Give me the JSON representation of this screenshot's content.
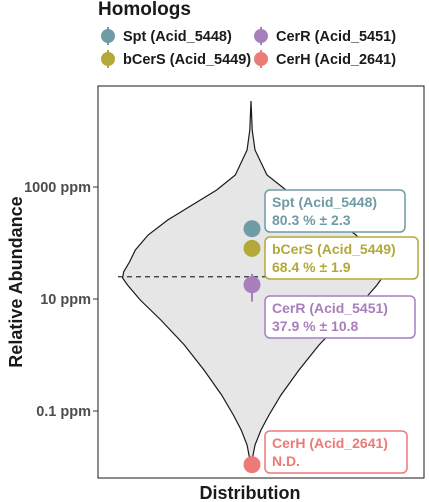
{
  "chart_data": {
    "type": "violin",
    "legend_title": "Homologs",
    "legend_placement": "top",
    "xlabel": "Distribution",
    "ylabel": "Relative Abundance",
    "y_scale": "log",
    "ylim_ppm": [
      0.01,
      30000
    ],
    "yticks": [
      {
        "value": 1000,
        "label": "1000 ppm"
      },
      {
        "value": 10,
        "label": "10 ppm"
      },
      {
        "value": 0.1,
        "label": "0.1 ppm"
      }
    ],
    "median_line_ppm": 25,
    "series": [
      {
        "name": "Spt (Acid_5448)",
        "value_ppm": 180,
        "error_ppm": [
          145,
          220
        ],
        "annotation_line1": "Spt (Acid_5448)",
        "annotation_line2": "80.3 % ± 2.3",
        "color": "#6e9ba4"
      },
      {
        "name": "bCerS (Acid_5449)",
        "value_ppm": 80,
        "error_ppm": [
          64,
          98
        ],
        "annotation_line1": "bCerS (Acid_5449)",
        "annotation_line2": "68.4 % ± 1.9",
        "color": "#b3a839"
      },
      {
        "name": "CerR (Acid_5451)",
        "value_ppm": 18,
        "error_ppm": [
          9,
          28
        ],
        "annotation_line1": "CerR (Acid_5451)",
        "annotation_line2": "37.9 % ± 10.8",
        "color": "#a77fbd"
      },
      {
        "name": "CerH (Acid_2641)",
        "value_ppm": 0.011,
        "error_ppm": [
          0.011,
          0.011
        ],
        "annotation_line1": "CerH (Acid_2641)",
        "annotation_line2": "N.D.",
        "color": "#ec7a76"
      }
    ]
  }
}
